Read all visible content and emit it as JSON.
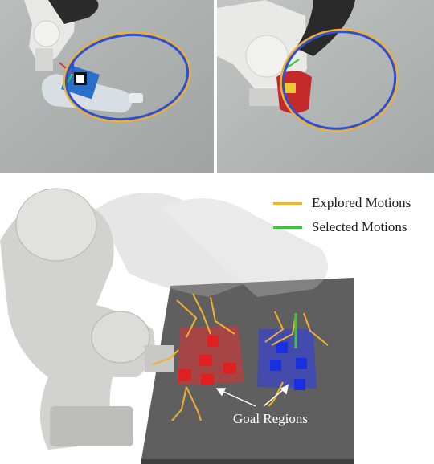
{
  "legend": {
    "items": [
      {
        "label": "Explored Motions",
        "color": "#f0b030"
      },
      {
        "label": "Selected Motions",
        "color": "#3cc43c"
      }
    ]
  },
  "annotations": {
    "goal_regions": "Goal Regions"
  },
  "colors": {
    "ellipse_outer": "#f0b030",
    "ellipse_inner": "#2a4fd8",
    "red_region": "#e03030",
    "blue_region": "#3040e0",
    "table_top": "#5f5f5f"
  }
}
